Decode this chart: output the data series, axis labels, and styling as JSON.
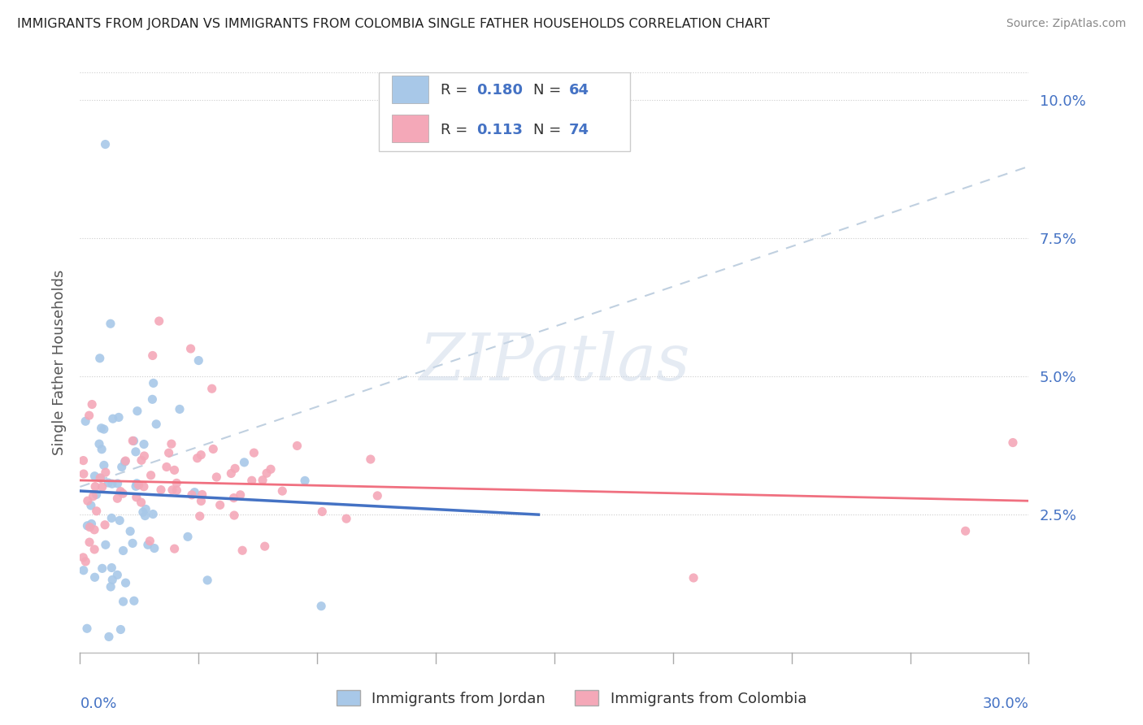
{
  "title": "IMMIGRANTS FROM JORDAN VS IMMIGRANTS FROM COLOMBIA SINGLE FATHER HOUSEHOLDS CORRELATION CHART",
  "source": "Source: ZipAtlas.com",
  "ylabel": "Single Father Households",
  "ytick_labels": [
    "2.5%",
    "5.0%",
    "7.5%",
    "10.0%"
  ],
  "ytick_vals": [
    0.025,
    0.05,
    0.075,
    0.1
  ],
  "xlim": [
    0.0,
    0.3
  ],
  "ylim": [
    0.0,
    0.105
  ],
  "jordan_R": 0.18,
  "jordan_N": 64,
  "colombia_R": 0.113,
  "colombia_N": 74,
  "jordan_color": "#a8c8e8",
  "colombia_color": "#f4a8b8",
  "jordan_line_color": "#4472c4",
  "colombia_line_color": "#f07080",
  "dash_line_color": "#c0d0e0",
  "watermark_color": "#ccd8e8",
  "background_color": "#ffffff",
  "title_color": "#222222",
  "source_color": "#888888",
  "axis_color": "#4472c4",
  "ylabel_color": "#555555",
  "bottom_legend_color": "#333333",
  "watermark_text": "ZIPatlas",
  "jordan_label": "Immigrants from Jordan",
  "colombia_label": "Immigrants from Colombia"
}
